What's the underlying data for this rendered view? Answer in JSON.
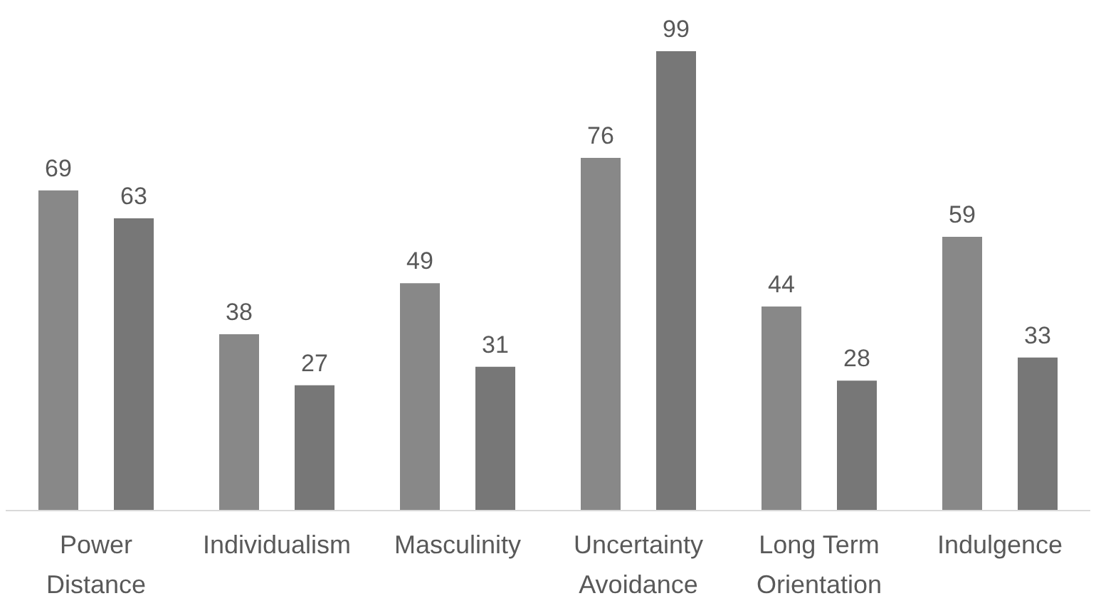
{
  "chart_data": {
    "type": "bar",
    "categories": [
      "Power Distance",
      "Individualism",
      "Masculinity",
      "Uncertainty Avoidance",
      "Long Term Orientation",
      "Indulgence"
    ],
    "series": [
      {
        "color": "#888888",
        "values": [
          69,
          38,
          49,
          76,
          44,
          59
        ]
      },
      {
        "color": "#777777",
        "values": [
          63,
          27,
          31,
          99,
          28,
          33
        ]
      }
    ],
    "data_labels": true,
    "grid": false,
    "legend": false
  }
}
